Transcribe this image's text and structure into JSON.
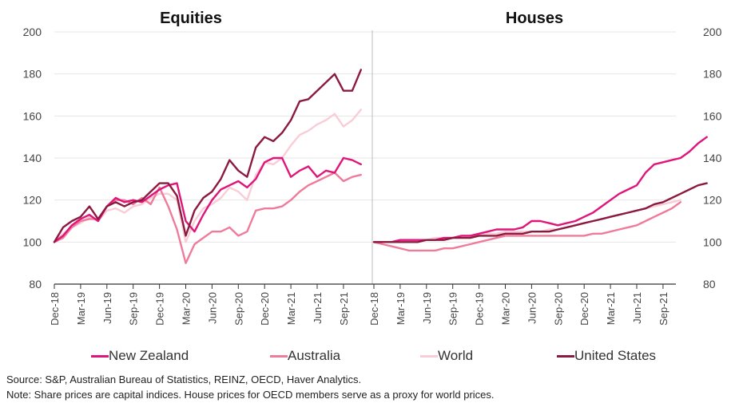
{
  "chart_data": {
    "type": "line",
    "y_range": [
      80,
      200
    ],
    "y_ticks": [
      "80",
      "100",
      "120",
      "140",
      "160",
      "180",
      "200"
    ],
    "grid": "horizontal",
    "legend_placement": "bottom",
    "panels": [
      {
        "title": "Equities",
        "x_ticks": [
          "Dec-18",
          "Mar-19",
          "Jun-19",
          "Sep-19",
          "Dec-19",
          "Mar-20",
          "Jun-20",
          "Sep-20",
          "Dec-20",
          "Mar-21",
          "Jun-21",
          "Sep-21"
        ],
        "series": [
          {
            "name": "New Zealand",
            "color": "#e0157a",
            "values": [
              100,
              103,
              108,
              111,
              113,
              110,
              117,
              121,
              119,
              120,
              119,
              122,
              125,
              127,
              128,
              110,
              105,
              113,
              120,
              125,
              127,
              129,
              126,
              130,
              138,
              140,
              140,
              131,
              134,
              136,
              131,
              134,
              133,
              140,
              139,
              137
            ]
          },
          {
            "name": "Australia",
            "color": "#ef7b9a",
            "values": [
              100,
              102,
              107,
              110,
              111,
              111,
              117,
              120,
              120,
              118,
              121,
              118,
              126,
              117,
              106,
              90,
              99,
              102,
              105,
              105,
              107,
              103,
              105,
              115,
              116,
              116,
              117,
              120,
              124,
              127,
              129,
              131,
              133,
              129,
              131,
              132
            ]
          },
          {
            "name": "World",
            "color": "#f9cdd7",
            "values": [
              100,
              104,
              107,
              109,
              112,
              110,
              115,
              116,
              114,
              117,
              118,
              121,
              123,
              123,
              120,
              100,
              110,
              116,
              118,
              121,
              126,
              124,
              120,
              132,
              138,
              137,
              140,
              146,
              151,
              153,
              156,
              158,
              161,
              155,
              158,
              163
            ]
          },
          {
            "name": "United States",
            "color": "#8b1a3e",
            "values": [
              100,
              107,
              110,
              112,
              117,
              111,
              117,
              119,
              117,
              119,
              120,
              124,
              128,
              128,
              122,
              103,
              115,
              121,
              124,
              130,
              139,
              134,
              131,
              145,
              150,
              148,
              152,
              158,
              167,
              168,
              172,
              176,
              180,
              172,
              172,
              182
            ]
          }
        ]
      },
      {
        "title": "Houses",
        "x_ticks": [
          "Dec-18",
          "Mar-19",
          "Jun-19",
          "Sep-19",
          "Dec-19",
          "Mar-20",
          "Jun-20",
          "Sep-20",
          "Dec-20",
          "Mar-21",
          "Jun-21",
          "Sep-21"
        ],
        "series": [
          {
            "name": "New Zealand",
            "color": "#e0157a",
            "values": [
              100,
              100,
              100,
              101,
              101,
              101,
              101,
              101,
              102,
              102,
              103,
              103,
              104,
              105,
              106,
              106,
              106,
              107,
              110,
              110,
              109,
              108,
              109,
              110,
              112,
              114,
              117,
              120,
              123,
              125,
              127,
              133,
              137,
              138,
              139,
              140,
              143,
              147,
              150
            ]
          },
          {
            "name": "Australia",
            "color": "#ef7b9a",
            "values": [
              100,
              99,
              98,
              97,
              96,
              96,
              96,
              96,
              97,
              97,
              98,
              99,
              100,
              101,
              102,
              103,
              103,
              103,
              103,
              103,
              103,
              103,
              103,
              103,
              103,
              104,
              104,
              105,
              106,
              107,
              108,
              110,
              112,
              114,
              116,
              119
            ]
          },
          {
            "name": "World",
            "color": "#f9cdd7",
            "values": [
              100,
              100,
              100,
              101,
              101,
              101,
              101,
              102,
              102,
              102,
              103,
              103,
              103,
              104,
              104,
              105,
              105,
              105,
              105,
              105,
              106,
              106,
              107,
              108,
              109,
              110,
              111,
              112,
              113,
              114,
              115,
              116,
              117,
              118,
              119,
              120
            ]
          },
          {
            "name": "United States",
            "color": "#8b1a3e",
            "values": [
              100,
              100,
              100,
              100,
              100,
              100,
              101,
              101,
              101,
              102,
              102,
              102,
              103,
              103,
              103,
              104,
              104,
              104,
              105,
              105,
              105,
              106,
              107,
              108,
              109,
              110,
              111,
              112,
              113,
              114,
              115,
              116,
              118,
              119,
              121,
              123,
              125,
              127,
              128
            ]
          }
        ]
      }
    ]
  },
  "legend": [
    {
      "label": "New Zealand",
      "color": "#e0157a"
    },
    {
      "label": "Australia",
      "color": "#ef7b9a"
    },
    {
      "label": "World",
      "color": "#f9cdd7"
    },
    {
      "label": "United States",
      "color": "#8b1a3e"
    }
  ],
  "notes": {
    "source": "Source: S&P, Australian Bureau of Statistics, REINZ, OECD, Haver Analytics.",
    "note": "Note: Share prices are capital indices. House prices for OECD members serve as a proxy for world prices."
  }
}
